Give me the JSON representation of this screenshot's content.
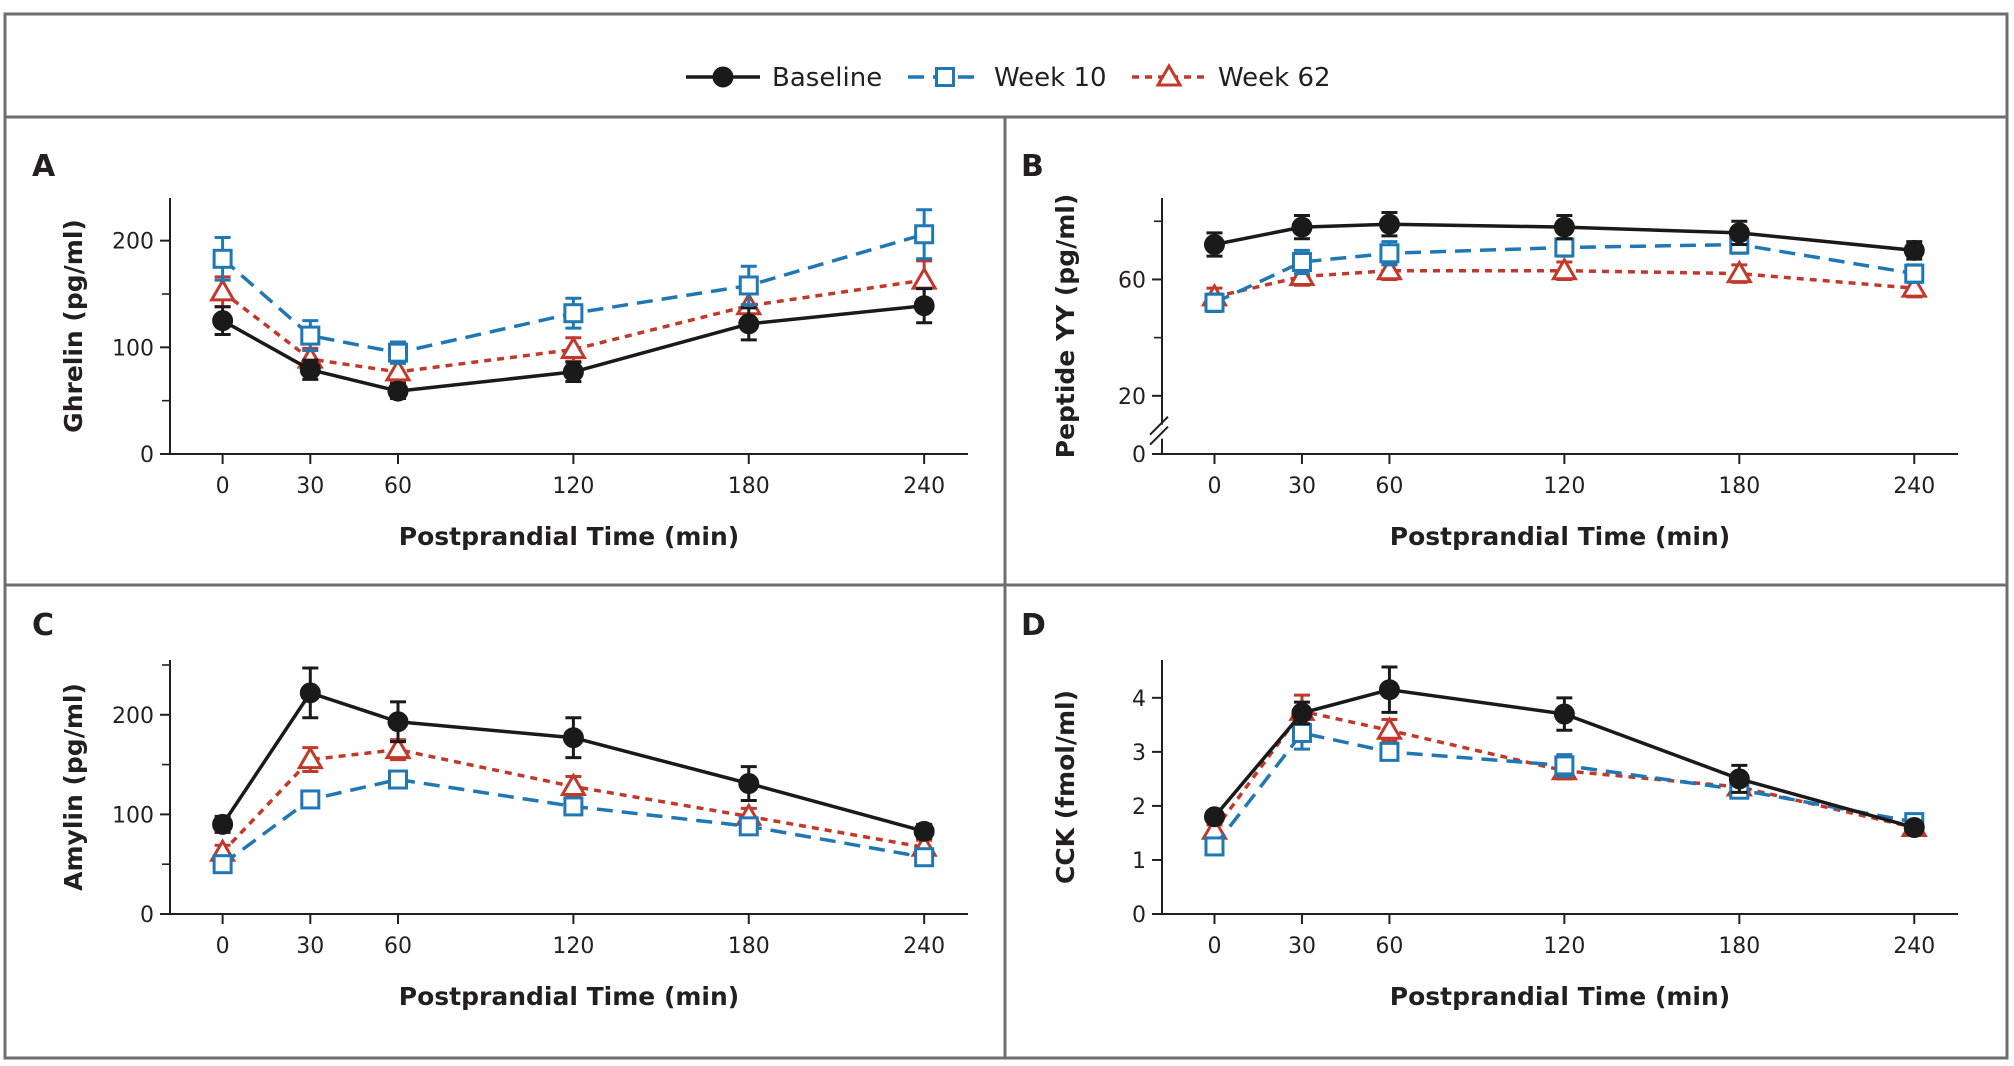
{
  "legend": {
    "items": [
      {
        "label": "Baseline",
        "color": "#1a1a1a",
        "marker": "filled-circle",
        "line": "solid"
      },
      {
        "label": "Week 10",
        "color": "#1f77b4",
        "marker": "open-square",
        "line": "dashed"
      },
      {
        "label": "Week 62",
        "color": "#c0392b",
        "marker": "open-triangle",
        "line": "dotted"
      }
    ]
  },
  "chart_data": [
    {
      "panel": "A",
      "type": "line",
      "title": "",
      "xlabel": "Postprandial Time (min)",
      "ylabel": "Ghrelin (pg/ml)",
      "x": [
        0,
        30,
        60,
        120,
        180,
        240
      ],
      "x_ticks": [
        0,
        30,
        60,
        120,
        180,
        240
      ],
      "xlim": [
        -18,
        255
      ],
      "ylim": [
        0,
        240
      ],
      "y_ticks": [
        0,
        100,
        200
      ],
      "y_minor_ticks": [
        50,
        150
      ],
      "series": [
        {
          "name": "Baseline",
          "values": [
            125,
            79,
            59,
            77,
            122,
            139
          ],
          "err": [
            13,
            9,
            7,
            9,
            15,
            16
          ]
        },
        {
          "name": "Week 10",
          "values": [
            183,
            111,
            95,
            132,
            158,
            206
          ],
          "err": [
            20,
            14,
            10,
            14,
            18,
            23
          ]
        },
        {
          "name": "Week 62",
          "values": [
            152,
            89,
            77,
            98,
            139,
            163
          ],
          "err": [
            14,
            10,
            9,
            11,
            14,
            18
          ]
        }
      ]
    },
    {
      "panel": "B",
      "type": "line",
      "title": "",
      "xlabel": "Postprandial Time (min)",
      "ylabel": "Peptide YY (pg/ml)",
      "x": [
        0,
        30,
        60,
        120,
        180,
        240
      ],
      "x_ticks": [
        0,
        30,
        60,
        120,
        180,
        240
      ],
      "xlim": [
        -18,
        255
      ],
      "ylim": [
        0,
        88
      ],
      "y_ticks": [
        0,
        20,
        60
      ],
      "y_minor_ticks": [
        40,
        80
      ],
      "axis_break": true,
      "series": [
        {
          "name": "Baseline",
          "values": [
            72,
            78,
            79,
            78,
            76,
            70
          ],
          "err": [
            4,
            4,
            4,
            4,
            4,
            3
          ]
        },
        {
          "name": "Week 10",
          "values": [
            52,
            66,
            69,
            71,
            72,
            62
          ],
          "err": [
            3,
            4,
            4,
            3,
            3,
            3
          ]
        },
        {
          "name": "Week 62",
          "values": [
            54,
            61,
            63,
            63,
            62,
            57
          ],
          "err": [
            3,
            3,
            3,
            3,
            3,
            3
          ]
        }
      ]
    },
    {
      "panel": "C",
      "type": "line",
      "title": "",
      "xlabel": "Postprandial Time (min)",
      "ylabel": "Amylin (pg/ml)",
      "x": [
        0,
        30,
        60,
        120,
        180,
        240
      ],
      "x_ticks": [
        0,
        30,
        60,
        120,
        180,
        240
      ],
      "xlim": [
        -18,
        255
      ],
      "ylim": [
        0,
        255
      ],
      "y_ticks": [
        0,
        100,
        200
      ],
      "y_minor_ticks": [
        50,
        150,
        250
      ],
      "series": [
        {
          "name": "Baseline",
          "values": [
            90,
            222,
            193,
            177,
            131,
            83
          ],
          "err": [
            8,
            25,
            20,
            20,
            17,
            7
          ]
        },
        {
          "name": "Week 10",
          "values": [
            50,
            115,
            135,
            108,
            88,
            57
          ],
          "err": [
            6,
            8,
            8,
            7,
            6,
            5
          ]
        },
        {
          "name": "Week 62",
          "values": [
            62,
            155,
            165,
            128,
            98,
            67
          ],
          "err": [
            7,
            12,
            10,
            10,
            8,
            7
          ]
        }
      ]
    },
    {
      "panel": "D",
      "type": "line",
      "title": "",
      "xlabel": "Postprandial Time (min)",
      "ylabel": "CCK (fmol/ml)",
      "x": [
        0,
        30,
        60,
        120,
        180,
        240
      ],
      "x_ticks": [
        0,
        30,
        60,
        120,
        180,
        240
      ],
      "xlim": [
        -18,
        255
      ],
      "ylim": [
        0,
        4.7
      ],
      "y_ticks": [
        0,
        1,
        2,
        3,
        4
      ],
      "series": [
        {
          "name": "Baseline",
          "values": [
            1.8,
            3.72,
            4.15,
            3.7,
            2.5,
            1.6
          ],
          "err": [
            0.1,
            0.2,
            0.42,
            0.3,
            0.25,
            0.1
          ]
        },
        {
          "name": "Week 10",
          "values": [
            1.25,
            3.35,
            3.0,
            2.75,
            2.3,
            1.7
          ],
          "err": [
            0.1,
            0.3,
            0.15,
            0.2,
            0.15,
            0.1
          ]
        },
        {
          "name": "Week 62",
          "values": [
            1.55,
            3.75,
            3.4,
            2.65,
            2.35,
            1.6
          ],
          "err": [
            0.1,
            0.3,
            0.2,
            0.15,
            0.15,
            0.1
          ]
        }
      ]
    }
  ]
}
